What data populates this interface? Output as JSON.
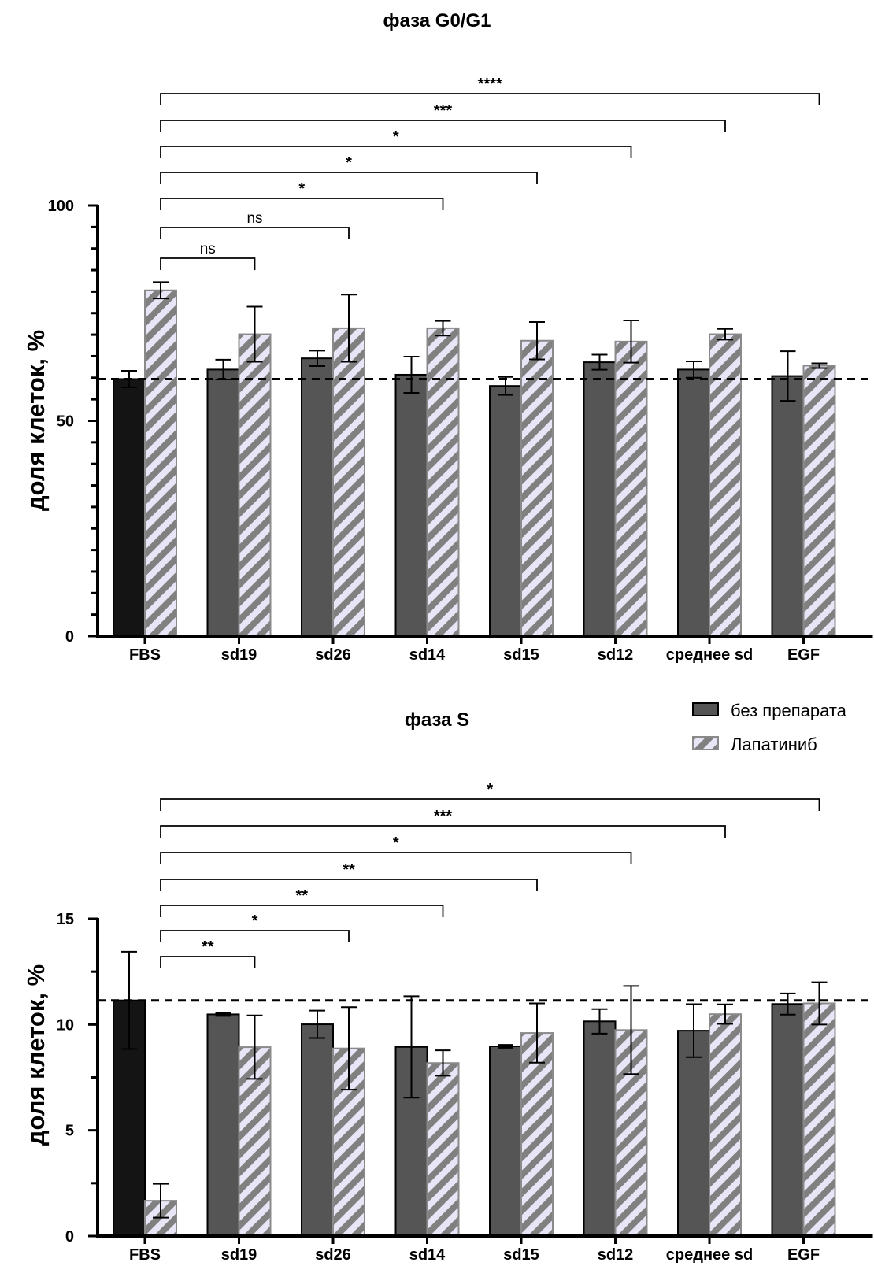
{
  "chart_data": [
    {
      "type": "bar",
      "title": "фаза G0/G1",
      "xlabel": "",
      "ylabel": "доля клеток, %",
      "ylim": [
        0,
        100
      ],
      "yticks": [
        0,
        50,
        100
      ],
      "yminor_step": 5,
      "categories": [
        "FBS",
        "sd19",
        "sd26",
        "sd14",
        "sd15",
        "sd12",
        "среднее sd",
        "EGF"
      ],
      "series": [
        {
          "name": "без препарата",
          "values": [
            59.7,
            61.9,
            64.5,
            60.7,
            58.1,
            63.6,
            61.9,
            60.4
          ],
          "errors": [
            1.9,
            2.3,
            1.8,
            4.2,
            2.1,
            1.75,
            1.9,
            5.75
          ]
        },
        {
          "name": "Лапатиниб",
          "values": [
            80.3,
            70.1,
            71.5,
            71.5,
            68.6,
            68.4,
            70.1,
            62.8
          ],
          "errors": [
            1.9,
            6.4,
            7.8,
            1.7,
            4.35,
            4.9,
            1.25,
            0.55
          ]
        }
      ],
      "reference_line": 59.7,
      "significance": [
        {
          "from": "FBS",
          "to": "sd19",
          "label": "ns"
        },
        {
          "from": "FBS",
          "to": "sd26",
          "label": "ns"
        },
        {
          "from": "FBS",
          "to": "sd14",
          "label": "*"
        },
        {
          "from": "FBS",
          "to": "sd15",
          "label": "*"
        },
        {
          "from": "FBS",
          "to": "sd12",
          "label": "*"
        },
        {
          "from": "FBS",
          "to": "среднее sd",
          "label": "***"
        },
        {
          "from": "FBS",
          "to": "EGF",
          "label": "****"
        }
      ]
    },
    {
      "type": "bar",
      "title": "фаза S",
      "xlabel": "",
      "ylabel": "доля клеток, %",
      "ylim": [
        0,
        15
      ],
      "yticks": [
        0,
        5,
        10,
        15
      ],
      "yminor_step": 2.5,
      "categories": [
        "FBS",
        "sd19",
        "sd26",
        "sd14",
        "sd15",
        "sd12",
        "среднее sd",
        "EGF"
      ],
      "series": [
        {
          "name": "без препарата",
          "values": [
            11.14,
            10.48,
            10.01,
            8.94,
            8.97,
            10.15,
            9.71,
            10.97
          ],
          "errors": [
            2.3,
            0.07,
            0.65,
            2.4,
            0.07,
            0.58,
            1.25,
            0.5
          ]
        },
        {
          "name": "Лапатиниб",
          "values": [
            1.67,
            8.93,
            8.87,
            8.18,
            9.6,
            9.74,
            10.49,
            11.0
          ],
          "errors": [
            0.8,
            1.5,
            1.95,
            0.6,
            1.4,
            2.08,
            0.46,
            1.0
          ]
        }
      ],
      "reference_line": 11.14,
      "significance": [
        {
          "from": "FBS",
          "to": "sd19",
          "label": "**"
        },
        {
          "from": "FBS",
          "to": "sd26",
          "label": "*"
        },
        {
          "from": "FBS",
          "to": "sd14",
          "label": "**"
        },
        {
          "from": "FBS",
          "to": "sd15",
          "label": "**"
        },
        {
          "from": "FBS",
          "to": "sd12",
          "label": "*"
        },
        {
          "from": "FBS",
          "to": "среднее sd",
          "label": "***"
        },
        {
          "from": "FBS",
          "to": "EGF",
          "label": "*"
        }
      ]
    }
  ],
  "legend": {
    "placement": "right, between panels",
    "items": [
      {
        "label": "без препарата",
        "style": "solid"
      },
      {
        "label": "Лапатиниб",
        "style": "hatched"
      }
    ]
  },
  "colors": {
    "fbs_control": "#141414",
    "no_drug": "#555555",
    "hatch_stripe": "#808080",
    "hatch_bg": "#e8e6f6",
    "hatch_border": "#8a8a8a",
    "axis": "#000000"
  }
}
